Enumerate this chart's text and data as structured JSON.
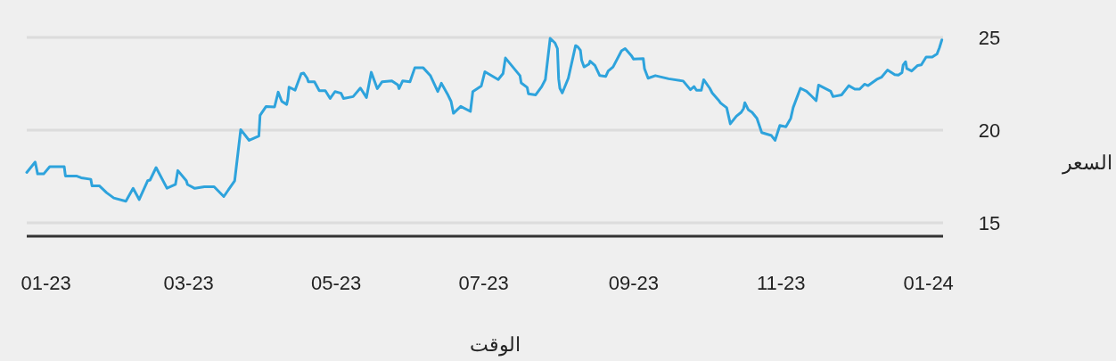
{
  "chart_data": {
    "type": "line",
    "xlabel": "الوقت",
    "ylabel": "السعر",
    "xlim": [
      "2022-12-24",
      "2024-01-07"
    ],
    "ylim": [
      14.28,
      25
    ],
    "xticks": [
      {
        "value": "2023-01-01",
        "label": "01-23"
      },
      {
        "value": "2023-03-01",
        "label": "03-23"
      },
      {
        "value": "2023-05-01",
        "label": "05-23"
      },
      {
        "value": "2023-07-01",
        "label": "07-23"
      },
      {
        "value": "2023-09-01",
        "label": "09-23"
      },
      {
        "value": "2023-11-01",
        "label": "11-23"
      },
      {
        "value": "2024-01-01",
        "label": "01-24"
      }
    ],
    "yticks": [
      15,
      20,
      25
    ],
    "grid": "y",
    "x": [
      "2022-12-24",
      "2022-12-27T12:00",
      "2022-12-28T12:00",
      "2022-12-31",
      "2023-01-02T12:00",
      "2023-01-08T12:00",
      "2023-01-09",
      "2023-01-13T12:00",
      "2023-01-15T12:00",
      "2023-01-19T12:00",
      "2023-01-20",
      "2023-01-23",
      "2023-01-26",
      "2023-01-29",
      "2023-02-03",
      "2023-02-06",
      "2023-02-08T12:00",
      "2023-02-12",
      "2023-02-13",
      "2023-02-15T12:00",
      "2023-02-20",
      "2023-02-23T12:00",
      "2023-02-24T12:00",
      "2023-02-28",
      "2023-02-28T12:00",
      "2023-03-03T12:00",
      "2023-03-07T12:00",
      "2023-03-11T12:00",
      "2023-03-15T12:00",
      "2023-03-20",
      "2023-03-22T12:00",
      "2023-03-26",
      "2023-03-30",
      "2023-03-30T12:00",
      "2023-04-02",
      "2023-04-05T12:00",
      "2023-04-07",
      "2023-04-08T12:00",
      "2023-04-10T12:00",
      "2023-04-11",
      "2023-04-11T12:00",
      "2023-04-14",
      "2023-04-16T12:00",
      "2023-04-17T12:00",
      "2023-04-19",
      "2023-04-19T12:00",
      "2023-04-22",
      "2023-04-24",
      "2023-04-26T12:00",
      "2023-04-28T12:00",
      "2023-04-30T12:00",
      "2023-05-03",
      "2023-05-04",
      "2023-05-08",
      "2023-05-11",
      "2023-05-13T12:00",
      "2023-05-15T12:00",
      "2023-05-18",
      "2023-05-20",
      "2023-05-24",
      "2023-05-26T12:00",
      "2023-05-27",
      "2023-05-28T12:00",
      "2023-05-31T12:00",
      "2023-06-02T12:00",
      "2023-06-06",
      "2023-06-09",
      "2023-06-12",
      "2023-06-13T12:00",
      "2023-06-16",
      "2023-06-17T12:00",
      "2023-06-18T12:00",
      "2023-06-21T12:00",
      "2023-06-25T12:00",
      "2023-06-26T12:00",
      "2023-06-30",
      "2023-07-01T12:00",
      "2023-07-07",
      "2023-07-09",
      "2023-07-10",
      "2023-07-16",
      "2023-07-16T12:00",
      "2023-07-19",
      "2023-07-19T12:00",
      "2023-07-22T12:00",
      "2023-07-25",
      "2023-07-26T12:00",
      "2023-07-28T12:00",
      "2023-07-30T12:00",
      "2023-07-31T12:00",
      "2023-08-01",
      "2023-08-01T12:00",
      "2023-08-02T12:00",
      "2023-08-05",
      "2023-08-08",
      "2023-08-09",
      "2023-08-10",
      "2023-08-10T12:00",
      "2023-08-11T12:00",
      "2023-08-13T12:00",
      "2023-08-14",
      "2023-08-16",
      "2023-08-18",
      "2023-08-20T12:00",
      "2023-08-21T12:00",
      "2023-08-23T12:00",
      "2023-08-27",
      "2023-08-28T12:00",
      "2023-08-31",
      "2023-09-01",
      "2023-09-05",
      "2023-09-05T12:00",
      "2023-09-07",
      "2023-09-10",
      "2023-09-15T12:00",
      "2023-09-21T12:00",
      "2023-09-24T12:00",
      "2023-09-26",
      "2023-09-27",
      "2023-09-29",
      "2023-09-30",
      "2023-10-02T12:00",
      "2023-10-03T12:00",
      "2023-10-06",
      "2023-10-07",
      "2023-10-09T12:00",
      "2023-10-11",
      "2023-10-13T12:00",
      "2023-10-15T12:00",
      "2023-10-16T12:00",
      "2023-10-17",
      "2023-10-18T12:00",
      "2023-10-20",
      "2023-10-22",
      "2023-10-24",
      "2023-10-28",
      "2023-10-29T12:00",
      "2023-10-31T12:00",
      "2023-11-03",
      "2023-11-05",
      "2023-11-06",
      "2023-11-09",
      "2023-11-11T12:00",
      "2023-11-13T12:00",
      "2023-11-15T12:00",
      "2023-11-16T12:00",
      "2023-11-21T12:00",
      "2023-11-22T12:00",
      "2023-11-26",
      "2023-11-29",
      "2023-12-01T12:00",
      "2023-12-03T12:00",
      "2023-12-05T12:00",
      "2023-12-07",
      "2023-12-10T12:00",
      "2023-12-12T12:00",
      "2023-12-15",
      "2023-12-18",
      "2023-12-19T12:00",
      "2023-12-21",
      "2023-12-21T12:00",
      "2023-12-22T12:00",
      "2023-12-23",
      "2023-12-25",
      "2023-12-27T12:00",
      "2023-12-29",
      "2023-12-31",
      "2024-01-02T12:00",
      "2024-01-04T12:00",
      "2024-01-05T12:00",
      "2024-01-06T12:00"
    ],
    "series": [
      {
        "color": "#2ea3dc",
        "values": [
          17.72,
          18.28,
          17.64,
          17.64,
          18.03,
          18.03,
          17.53,
          17.53,
          17.43,
          17.35,
          17.0,
          17.0,
          16.63,
          16.34,
          16.17,
          16.86,
          16.26,
          17.27,
          17.31,
          17.98,
          16.87,
          17.07,
          17.82,
          17.27,
          17.07,
          16.86,
          16.95,
          16.95,
          16.42,
          17.27,
          20.03,
          19.45,
          19.68,
          20.8,
          21.28,
          21.25,
          22.05,
          21.55,
          21.39,
          21.68,
          22.32,
          22.16,
          23.04,
          23.08,
          22.8,
          22.61,
          22.61,
          22.13,
          22.13,
          21.71,
          22.08,
          21.99,
          21.71,
          21.81,
          22.27,
          21.76,
          23.12,
          22.24,
          22.61,
          22.66,
          22.44,
          22.24,
          22.66,
          22.61,
          23.36,
          23.36,
          22.93,
          22.08,
          22.53,
          21.95,
          21.55,
          20.91,
          21.28,
          21.01,
          22.08,
          22.38,
          23.15,
          22.73,
          23.05,
          23.89,
          22.94,
          22.55,
          22.3,
          21.96,
          21.9,
          22.35,
          22.73,
          24.95,
          24.7,
          24.4,
          22.77,
          22.26,
          22.01,
          22.8,
          24.56,
          24.48,
          24.31,
          23.78,
          23.41,
          23.56,
          23.72,
          23.49,
          22.94,
          22.9,
          23.19,
          23.41,
          24.28,
          24.4,
          24.03,
          23.83,
          23.86,
          23.32,
          22.8,
          22.94,
          22.77,
          22.65,
          22.18,
          22.35,
          22.15,
          22.15,
          22.72,
          22.26,
          22.01,
          21.64,
          21.46,
          21.21,
          20.34,
          20.75,
          20.96,
          21.17,
          21.48,
          21.09,
          20.96,
          20.64,
          19.87,
          19.71,
          19.45,
          20.25,
          20.18,
          20.64,
          21.22,
          22.26,
          22.1,
          21.85,
          21.59,
          22.43,
          22.1,
          21.81,
          21.9,
          22.4,
          22.21,
          22.21,
          22.48,
          22.4,
          22.73,
          22.85,
          23.24,
          22.99,
          22.97,
          23.1,
          23.52,
          23.69,
          23.32,
          23.19,
          23.49,
          23.52,
          23.94,
          23.94,
          24.11,
          24.45,
          24.87
        ]
      }
    ]
  }
}
